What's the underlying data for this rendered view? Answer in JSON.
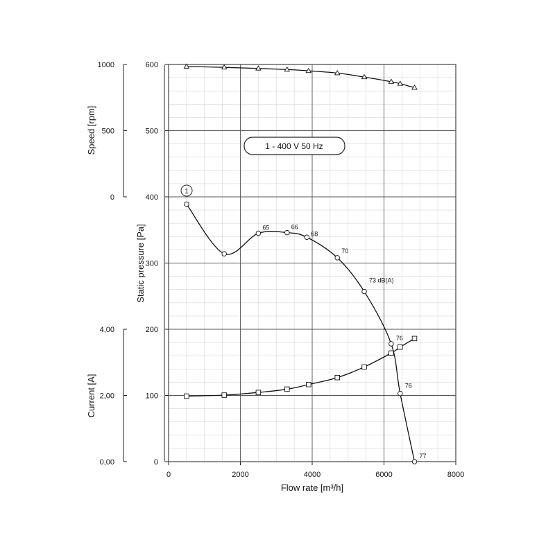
{
  "chart_data": {
    "type": "line",
    "title": "1 - 400 V 50 Hz",
    "curve_marker": "1",
    "x_axis": {
      "label": "Flow rate [m³/h]",
      "range": [
        0,
        8000
      ],
      "ticks": [
        "0",
        "2000",
        "4000",
        "6000",
        "8000"
      ],
      "minor_step": 500
    },
    "y_axes": {
      "pressure": {
        "label": "Static pressure [Pa]",
        "range": [
          0,
          600
        ],
        "ticks": [
          "0",
          "100",
          "200",
          "300",
          "400",
          "500",
          "600"
        ],
        "minor_step": 20
      },
      "speed": {
        "label": "Speed [rpm]",
        "range": [
          0,
          1000
        ],
        "ticks": [
          "0",
          "500",
          "1000"
        ]
      },
      "current": {
        "label": "Current [A]",
        "range": [
          0,
          4
        ],
        "ticks": [
          "0,00",
          "2,00",
          "4,00"
        ]
      }
    },
    "grid": true,
    "series": [
      {
        "axis": "speed",
        "marker": "triangle",
        "x": [
          500,
          1550,
          2500,
          3300,
          3900,
          4700,
          5450,
          6200,
          6450,
          6850
        ],
        "y": [
          985,
          978,
          970,
          962,
          952,
          935,
          905,
          870,
          855,
          825
        ]
      },
      {
        "axis": "pressure",
        "marker": "circle",
        "x": [
          500,
          1550,
          2500,
          3300,
          3850,
          4700,
          5450,
          6200,
          6450,
          6850
        ],
        "y": [
          389,
          314,
          345,
          346,
          339,
          308,
          257,
          178,
          103,
          0
        ],
        "labels": [
          "",
          "",
          "65",
          "66",
          "68",
          "70",
          "73 dB(A)",
          "76",
          "76",
          "77"
        ]
      },
      {
        "axis": "current",
        "marker": "square",
        "x": [
          500,
          1550,
          2500,
          3300,
          3900,
          4700,
          5450,
          6200,
          6450,
          6850
        ],
        "y": [
          1.98,
          2.01,
          2.09,
          2.19,
          2.33,
          2.54,
          2.86,
          3.28,
          3.46,
          3.72
        ]
      }
    ]
  }
}
